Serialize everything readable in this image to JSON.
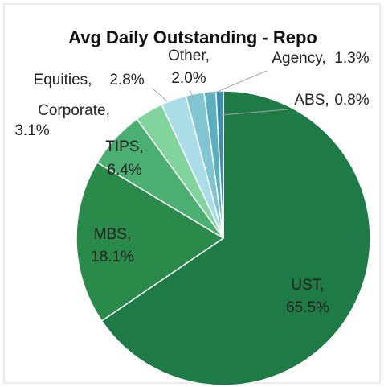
{
  "chart_data": {
    "type": "pie",
    "title": "Avg Daily Outstanding - Repo",
    "categories": [
      "UST,",
      "MBS,",
      "TIPS,",
      "Corporate,",
      "Equities,",
      "Other,",
      "Agency,",
      "ABS,"
    ],
    "values": [
      65.5,
      18.1,
      6.4,
      3.1,
      2.8,
      2.0,
      1.3,
      0.8
    ],
    "value_labels": [
      "65.5%",
      "18.1%",
      "6.4%",
      "3.1%",
      "2.8%",
      "2.0%",
      "1.3%",
      "0.8%"
    ],
    "colors": [
      "#1e7b45",
      "#2a8a4a",
      "#4caf72",
      "#80d49c",
      "#a9dde8",
      "#80c5d1",
      "#5aafc1",
      "#3b8fb1"
    ]
  }
}
